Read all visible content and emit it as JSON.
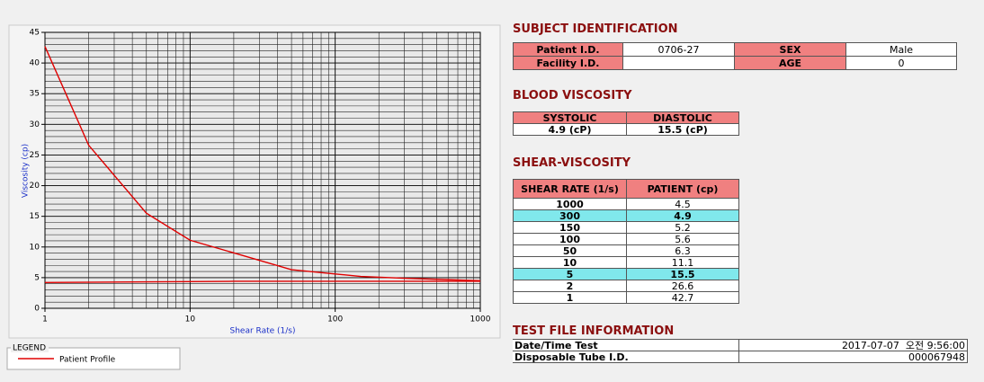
{
  "chart_data": {
    "type": "line",
    "x_label": "Shear Rate (1/s)",
    "y_label": "Viscosity (cp)",
    "x_log": true,
    "xlim": [
      1,
      1000
    ],
    "xticks": [
      1,
      10,
      100,
      1000
    ],
    "ylim": [
      0,
      45
    ],
    "yticks": [
      0,
      5,
      10,
      15,
      20,
      25,
      30,
      35,
      40,
      45
    ],
    "grid": true,
    "minor_grid": true,
    "legend_title": "LEGEND",
    "series": [
      {
        "name": "Patient Profile",
        "color": "#e00000",
        "x": [
          1000,
          300,
          150,
          100,
          50,
          10,
          5,
          2,
          1
        ],
        "values": [
          4.5,
          4.9,
          5.2,
          5.6,
          6.3,
          11.1,
          15.5,
          26.6,
          42.7
        ]
      },
      {
        "color": "#e00000",
        "x": [
          1,
          20,
          1000
        ],
        "values": [
          4.2,
          4.4,
          4.4
        ]
      }
    ]
  },
  "subject_identification": {
    "title": "SUBJECT IDENTIFICATION",
    "rows": [
      [
        "Patient I.D.",
        "0706-27",
        "SEX",
        "Male"
      ],
      [
        "Facility I.D.",
        null,
        "AGE",
        "0"
      ]
    ]
  },
  "blood_viscosity": {
    "title": "BLOOD VISCOSITY",
    "headers": [
      "SYSTOLIC",
      "DIASTOLIC"
    ],
    "values": [
      "4.9 (cP)",
      "15.5 (cP)"
    ]
  },
  "shear_viscosity": {
    "title": "SHEAR-VISCOSITY",
    "headers": [
      "SHEAR RATE (1/s)",
      "PATIENT (cp)"
    ],
    "highlight_rows": [
      1,
      6
    ]
  },
  "test_file_information": {
    "title": "TEST FILE INFORMATION",
    "rows": [
      [
        "Date/Time Test",
        "2017-07-07  오전 9:56:00"
      ],
      [
        "Disposable Tube I.D.",
        "000067948"
      ]
    ]
  }
}
